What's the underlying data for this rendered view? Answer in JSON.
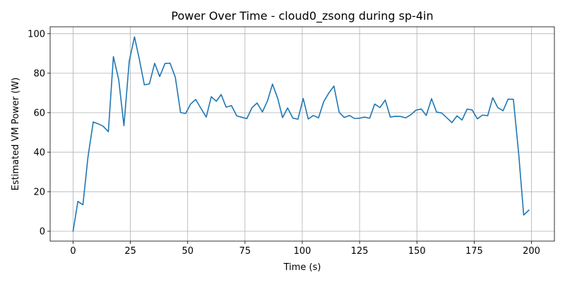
{
  "chart_data": {
    "type": "line",
    "title": "Power Over Time - cloud0_zsong during sp-4in",
    "xlabel": "Time (s)",
    "ylabel": "Estimated VM Power (W)",
    "xlim": [
      -10,
      210
    ],
    "ylim": [
      -5,
      103.5
    ],
    "xticks": [
      0,
      25,
      50,
      75,
      100,
      125,
      150,
      175,
      200
    ],
    "yticks": [
      0,
      20,
      40,
      60,
      80,
      100
    ],
    "grid": true,
    "line_color": "#1f77b4",
    "series": [
      {
        "x": [
          0,
          2.1,
          4.3,
          6.5,
          8.8,
          10.9,
          13.1,
          15.4,
          17.6,
          19.9,
          22.2,
          24.5,
          26.8,
          28.9,
          31.1,
          33.3,
          35.6,
          37.8,
          40.1,
          42.3,
          44.6,
          46.9,
          49.1,
          51.3,
          53.5,
          55.8,
          58.1,
          60.3,
          62.5,
          64.6,
          66.8,
          69.1,
          71.4,
          73.6,
          75.8,
          78.1,
          80.3,
          82.6,
          84.8,
          87.0,
          89.3,
          91.4,
          93.6,
          95.9,
          98.1,
          100.4,
          102.6,
          104.8,
          107.1,
          109.3,
          111.6,
          113.8,
          116.1,
          118.3,
          120.6,
          122.8,
          124.9,
          127.1,
          129.4,
          131.6,
          133.9,
          136.2,
          138.4,
          140.6,
          142.9,
          145.1,
          147.4,
          149.6,
          151.9,
          154.1,
          156.4,
          158.6,
          160.8,
          163.1,
          165.3,
          167.5,
          169.7,
          171.9,
          174.1,
          176.4,
          178.6,
          180.9,
          183.1,
          185.3,
          187.6,
          189.8,
          192.1,
          194.4,
          196.6,
          198.9
        ],
        "y": [
          0,
          15.1,
          13.4,
          37.5,
          55.3,
          54.4,
          53.2,
          50.4,
          88.4,
          76.8,
          53.4,
          86.1,
          98.4,
          87.1,
          74.1,
          74.6,
          85.0,
          78.3,
          84.9,
          85.1,
          78.0,
          60.1,
          59.6,
          64.4,
          66.7,
          62.2,
          57.8,
          68.1,
          65.8,
          69.2,
          62.8,
          63.6,
          58.4,
          57.7,
          57.0,
          62.6,
          64.9,
          60.4,
          65.9,
          74.5,
          67.2,
          57.5,
          62.4,
          57.3,
          56.7,
          67.2,
          56.8,
          58.6,
          57.4,
          65.5,
          70.0,
          73.5,
          60.2,
          57.6,
          58.6,
          57.1,
          57.2,
          57.8,
          57.2,
          64.4,
          62.6,
          66.4,
          57.8,
          58.2,
          58.1,
          57.4,
          59.0,
          61.3,
          61.9,
          58.6,
          67.1,
          60.3,
          59.9,
          57.4,
          55.0,
          58.4,
          56.3,
          61.8,
          61.4,
          56.9,
          58.8,
          58.5,
          67.6,
          62.6,
          61.0,
          66.9,
          66.8,
          39.4,
          8.2,
          10.7
        ]
      }
    ]
  }
}
